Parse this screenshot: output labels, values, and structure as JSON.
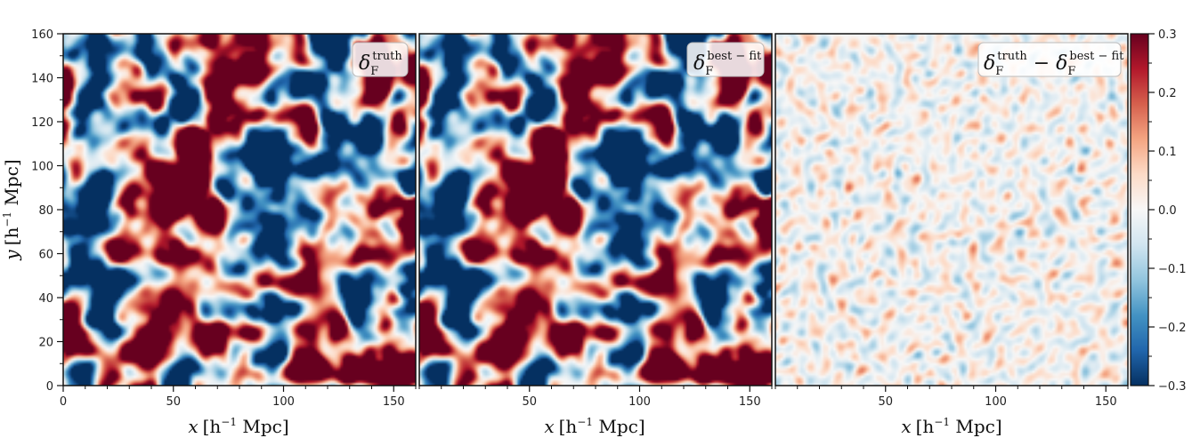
{
  "chart_data": [
    {
      "type": "heatmap",
      "panel": "truth",
      "legend": {
        "symbol": "δ",
        "sub": "F",
        "sup": "truth"
      },
      "xlabel": {
        "var": "x",
        "unit": "[h",
        "exp": "−1",
        "rest": " Mpc]"
      },
      "ylabel": {
        "var": "y",
        "unit": "[h",
        "exp": "−1",
        "rest": " Mpc]"
      },
      "xlim": [
        0,
        160
      ],
      "ylim": [
        0,
        160
      ],
      "xticks": [
        0,
        50,
        100,
        150
      ],
      "yticks": [
        0,
        20,
        40,
        60,
        80,
        100,
        120,
        140,
        160
      ],
      "amplitude": 1.0
    },
    {
      "type": "heatmap",
      "panel": "best-fit",
      "legend": {
        "symbol": "δ",
        "sub": "F",
        "sup": "best − fit"
      },
      "xlabel": {
        "var": "x",
        "unit": "[h",
        "exp": "−1",
        "rest": " Mpc]"
      },
      "xlim": [
        0,
        160
      ],
      "ylim": [
        0,
        160
      ],
      "xticks": [
        50,
        100,
        150
      ],
      "amplitude": 1.0
    },
    {
      "type": "heatmap",
      "panel": "residual",
      "legend": {
        "symbol": "δ",
        "sub": "F",
        "sup": "truth",
        "minus": " − ",
        "symbol2": "δ",
        "sub2": "F",
        "sup2": "best − fit"
      },
      "xlabel": {
        "var": "x",
        "unit": "[h",
        "exp": "−1",
        "rest": " Mpc]"
      },
      "xlim": [
        0,
        160
      ],
      "ylim": [
        0,
        160
      ],
      "xticks": [
        50,
        100,
        150
      ],
      "amplitude": 0.08
    }
  ],
  "colorbar": {
    "colormap": "RdBu_r",
    "vmin": -0.3,
    "vmax": 0.3,
    "ticks": [
      -0.3,
      -0.2,
      -0.1,
      0.0,
      0.1,
      0.2,
      0.3
    ],
    "tick_labels": [
      "−0.3",
      "−0.2",
      "−0.1",
      "0.0",
      "0.1",
      "0.2",
      "0.3"
    ]
  },
  "colors": {
    "red": "#67001f",
    "white": "#f7f7f7",
    "blue": "#053061",
    "frame": "#111111"
  }
}
